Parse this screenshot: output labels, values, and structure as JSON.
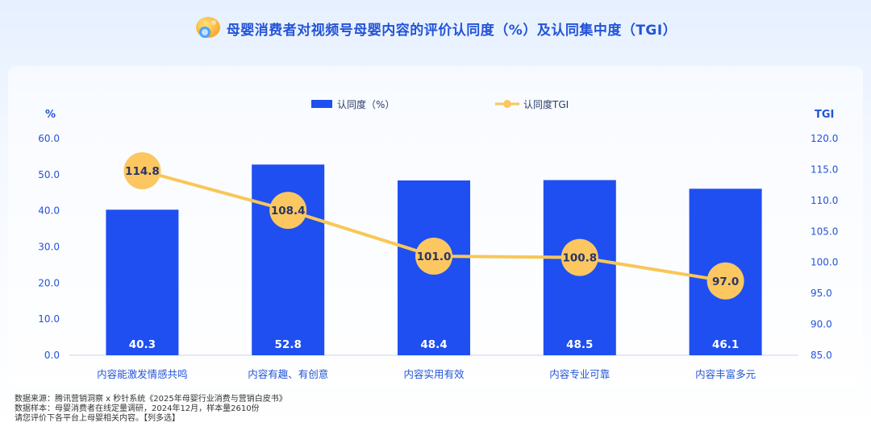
{
  "header": {
    "title": "母婴消费者对视频号母婴内容的评价认同度（%）及认同集中度（TGI）",
    "logo_icon": "baby-pacifier-logo-icon"
  },
  "colors": {
    "bar": "#1f4ff0",
    "line": "#f8c757",
    "marker": "#fcc761",
    "title": "#2354d6",
    "axis_text": "#2354d6"
  },
  "chart_data": {
    "type": "bar",
    "categories": [
      "内容能激发情感共鸣",
      "内容有趣、有创意",
      "内容实用有效",
      "内容专业可靠",
      "内容丰富多元"
    ],
    "series": [
      {
        "name": "认同度（%）",
        "type": "bar",
        "axis": "left",
        "values": [
          40.3,
          52.8,
          48.4,
          48.5,
          46.1
        ]
      },
      {
        "name": "认同度TGI",
        "type": "line",
        "axis": "right",
        "values": [
          114.8,
          108.4,
          101.0,
          100.8,
          97.0
        ]
      }
    ],
    "ylabel_left": "%",
    "ylabel_right": "TGI",
    "ylim_left": [
      0,
      60
    ],
    "ylim_right": [
      85,
      120
    ],
    "yticks_left": [
      "0.0",
      "10.0",
      "20.0",
      "30.0",
      "40.0",
      "50.0",
      "60.0"
    ],
    "yticks_right": [
      "85.0",
      "90.0",
      "95.0",
      "100.0",
      "105.0",
      "110.0",
      "115.0",
      "120.0"
    ],
    "bar_labels": [
      "40.3",
      "52.8",
      "48.4",
      "48.5",
      "46.1"
    ],
    "line_labels": [
      "114.8",
      "108.4",
      "101.0",
      "100.8",
      "97.0"
    ],
    "legend_position": "top-center",
    "grid": false
  },
  "footer": {
    "source": "数据来源：腾讯营销洞察 x 秒针系统《2025年母婴行业消费与营销白皮书》",
    "sample": "数据样本：母婴消费者在线定量调研，2024年12月，样本量2610份",
    "question": "请您评价下各平台上母婴相关内容。【列多选】"
  }
}
